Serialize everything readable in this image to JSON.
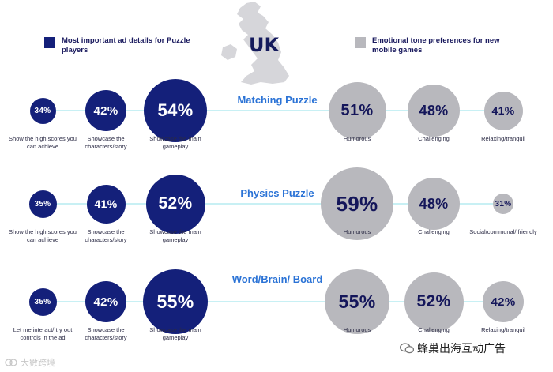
{
  "country": "UK",
  "legend": {
    "ad_details": "Most important ad details for Puzzle players",
    "emotional_tone": "Emotional tone preferences for new mobile games"
  },
  "colors": {
    "ad_details": "#14207a",
    "emotional_tone": "#b8b8bd",
    "connector": "#b5ecf1",
    "genre_text": "#2b73d6"
  },
  "chart_data": {
    "type": "bubble",
    "units": "%",
    "rows": [
      {
        "genre": "Matching Puzzle",
        "ad_details": [
          {
            "label": "Show the high scores you can achieve",
            "value": 34
          },
          {
            "label": "Showcase the characters/story",
            "value": 42
          },
          {
            "label": "Showcase the main gameplay",
            "value": 54
          }
        ],
        "emotional_tone": [
          {
            "label": "Humorous",
            "value": 51
          },
          {
            "label": "Challenging",
            "value": 48
          },
          {
            "label": "Relaxing/tranquil",
            "value": 41
          }
        ]
      },
      {
        "genre": "Physics Puzzle",
        "ad_details": [
          {
            "label": "Show the high scores you can achieve",
            "value": 35
          },
          {
            "label": "Showcase the characters/story",
            "value": 41
          },
          {
            "label": "Showcase the main gameplay",
            "value": 52
          }
        ],
        "emotional_tone": [
          {
            "label": "Humorous",
            "value": 59
          },
          {
            "label": "Challenging",
            "value": 48
          },
          {
            "label": "Social/communal/ friendly",
            "value": 31
          }
        ]
      },
      {
        "genre": "Word/Brain/ Board",
        "ad_details": [
          {
            "label": "Let me interact/ try out controls in the ad",
            "value": 35
          },
          {
            "label": "Showcase the characters/story",
            "value": 42
          },
          {
            "label": "Showcase the main gameplay",
            "value": 55
          }
        ],
        "emotional_tone": [
          {
            "label": "Humorous",
            "value": 55
          },
          {
            "label": "Challenging",
            "value": 52
          },
          {
            "label": "Relaxing/tranquil",
            "value": 42
          }
        ]
      }
    ]
  },
  "watermarks": {
    "left": "大數跨境",
    "right": "蜂巢出海互动广告"
  }
}
